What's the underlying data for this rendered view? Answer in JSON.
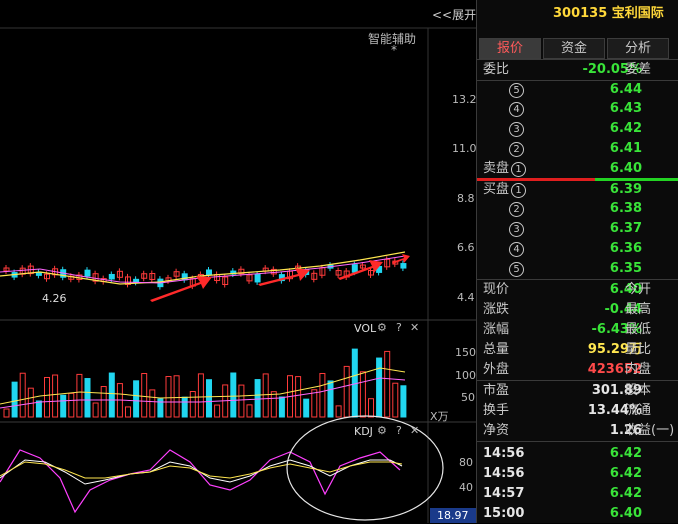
{
  "chart": {
    "expand_label": "<<展开",
    "assist_label": "智能辅助",
    "assist_mark": "*",
    "price_ticks": [
      "13.2",
      "11.0",
      "8.8",
      "6.6",
      "4.4"
    ],
    "low_label": "4.26",
    "vol_title": "VOL",
    "vol_ticks": [
      "150",
      "100",
      "50"
    ],
    "vol_unit": "X万",
    "kdj_title": "KDJ",
    "kdj_ticks": [
      "80",
      "40"
    ],
    "kdj_value": "18.97",
    "panel_icons": [
      "gear-icon",
      "help-icon",
      "close-icon"
    ],
    "colors": {
      "up": "#ff3b3b",
      "down": "#21d6f0",
      "ma": "#ffe650",
      "arrow": "#ff2a2a"
    }
  },
  "quote": {
    "header": "300135 宝利国际",
    "tabs": [
      "报价",
      "资金",
      "分析"
    ],
    "weibi_label": "委比",
    "weibi_value": "-20.05%",
    "weicha_label": "委差",
    "sell_label": "卖盘",
    "buy_label": "买盘",
    "sell": [
      {
        "n": "5",
        "price": "6.44"
      },
      {
        "n": "4",
        "price": "6.43"
      },
      {
        "n": "3",
        "price": "6.42"
      },
      {
        "n": "2",
        "price": "6.41"
      },
      {
        "n": "1",
        "price": "6.40"
      }
    ],
    "buy": [
      {
        "n": "1",
        "price": "6.39"
      },
      {
        "n": "2",
        "price": "6.38"
      },
      {
        "n": "3",
        "price": "6.37"
      },
      {
        "n": "4",
        "price": "6.36"
      },
      {
        "n": "5",
        "price": "6.35"
      }
    ],
    "stats": [
      {
        "l": "现价",
        "v": "6.40",
        "r": "今开"
      },
      {
        "l": "涨跌",
        "v": "-0.44",
        "r": "最高"
      },
      {
        "l": "涨幅",
        "v": "-6.43%",
        "r": "最低"
      },
      {
        "l": "总量",
        "v": "95.29万",
        "r": "量比"
      },
      {
        "l": "外盘",
        "v": "423652",
        "r": "内盘"
      }
    ],
    "stats2": [
      {
        "l": "市盈",
        "v": "301.89",
        "r": "股本"
      },
      {
        "l": "换手",
        "v": "13.44%",
        "r": "流通"
      },
      {
        "l": "净资",
        "v": "1.26",
        "r": "收益(一)"
      }
    ],
    "ticks": [
      {
        "t": "14:56",
        "p": "6.42"
      },
      {
        "t": "14:56",
        "p": "6.42"
      },
      {
        "t": "14:57",
        "p": "6.42"
      },
      {
        "t": "15:00",
        "p": "6.40"
      }
    ]
  }
}
